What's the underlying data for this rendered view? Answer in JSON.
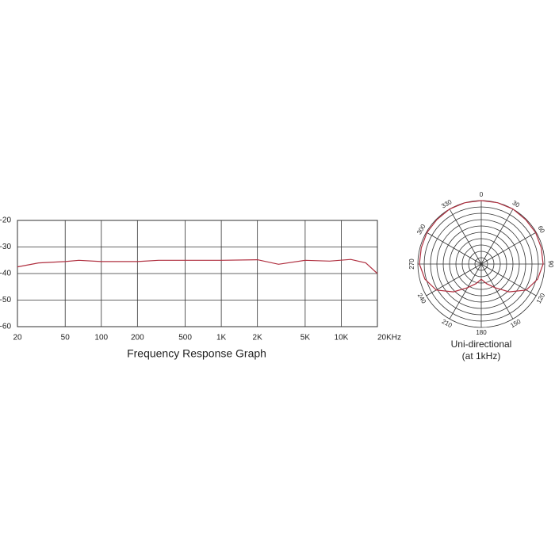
{
  "chart_data": [
    {
      "type": "line",
      "title": "Frequency Response Graph",
      "log_x": true,
      "grid": true,
      "color": "#b03040",
      "x": [
        20,
        30,
        50,
        65,
        100,
        200,
        300,
        1000,
        2000,
        3000,
        5000,
        8000,
        12000,
        16000,
        20000
      ],
      "values": [
        -37.5,
        -36,
        -35.5,
        -35,
        -35.5,
        -35.5,
        -35,
        -35,
        -34.8,
        -36.5,
        -35,
        -35.3,
        -34.7,
        -36,
        -40
      ],
      "xlim": [
        20,
        20000
      ],
      "xticks": [
        20,
        50,
        100,
        200,
        500,
        {
          "value": 1000,
          "label": "1K"
        },
        {
          "value": 2000,
          "label": "2K"
        },
        {
          "value": 5000,
          "label": "5K"
        },
        {
          "value": 10000,
          "label": "10K"
        },
        {
          "value": 20000,
          "label": "20KHz"
        }
      ],
      "ylim": [
        -60,
        -20
      ],
      "yticks": [
        -20,
        -30,
        -40,
        -50,
        -60
      ]
    },
    {
      "type": "polar",
      "title": "Uni-directional",
      "subtitle": "(at 1kHz)",
      "color": "#b03040",
      "theta": [
        0,
        15,
        30,
        45,
        60,
        75,
        90,
        105,
        120,
        135,
        150,
        165,
        180,
        195,
        210,
        225,
        240,
        255,
        270,
        285,
        300,
        315,
        330,
        345
      ],
      "r": [
        10,
        10,
        10,
        9.9,
        9.9,
        9.8,
        9.75,
        9.2,
        8.2,
        6.2,
        4.3,
        3.2,
        2.4,
        3.2,
        4.3,
        6.2,
        8.2,
        9.2,
        9.75,
        9.8,
        9.9,
        9.9,
        10,
        10
      ],
      "rlim": [
        0,
        10
      ],
      "rticks": [
        1,
        2,
        3,
        4,
        5,
        6,
        7,
        8,
        9,
        10
      ],
      "thetaticks": [
        0,
        30,
        60,
        90,
        120,
        150,
        180,
        210,
        240,
        270,
        300,
        330
      ]
    }
  ]
}
